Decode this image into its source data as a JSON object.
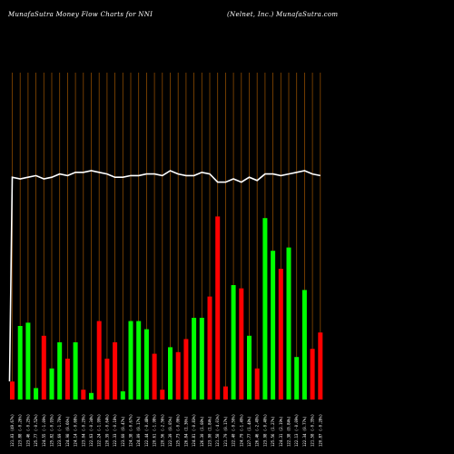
{
  "header": {
    "title_left": "MunafaSutra  Money Flow  Charts for NNI",
    "title_right": "(Nelnet,  Inc.) MunafaSutra.com"
  },
  "colors": {
    "background": "#000000",
    "gridline": "#8B4A00",
    "up": "#00FF00",
    "down": "#FF0000",
    "line": "#FFFFFF"
  },
  "chart_data": {
    "type": "bar",
    "title": "",
    "xlabel": "",
    "ylabel": "",
    "grid": "vertical",
    "legend": "none",
    "ylim": [
      0,
      100
    ],
    "categories": [
      "121.03 (49.67%)",
      "123.88 (-0.26%)",
      "123.46 (-0.25%)",
      "125.77 (-0.52%)",
      "124.55 (-1.09%)",
      "125.82 (-0.93%)",
      "123.69 (-1.70%)",
      "124.98 (0.66%)",
      "124.14 (-0.68%)",
      "123.04 (-0.29%)",
      "122.63 (-0.34%)",
      "122.24 (-1.99%)",
      "120.39 (-0.64%)",
      "122.33 (-0.18%)",
      "123.60 (0.47%)",
      "124.38 (-0.67%)",
      "124.09 (0.17%)",
      "122.44 (-0.48%)",
      "120.61 (-1.98%)",
      "120.56 (-2.56%)",
      "122.39 (0.05%)",
      "125.73 (-0.06%)",
      "126.84 (1.36%)",
      "124.81 (-0.83%)",
      "126.30 (1.08%)",
      "123.90 (1.84%)",
      "121.58 (-4.01%)",
      "121.79 (0.17%)",
      "122.40 (-0.50%)",
      "124.79 (-1.49%)",
      "127.77 (1.48%)",
      "126.46 (-2.49%)",
      "123.98 (-0.40%)",
      "125.56 (1.27%)",
      "124.31 (2.19%)",
      "122.38 (0.84%)",
      "122.13 (-0.09%)",
      "122.34 (0.77%)",
      "121.58 (-0.35%)",
      "120.87 (-0.28%)"
    ],
    "series": [
      {
        "values": [
          5.5,
          22.5,
          23.5,
          3.5,
          19.5,
          9.5,
          17.5,
          12.5,
          17.5,
          3.0,
          2.0,
          24.0,
          12.5,
          17.5,
          2.5,
          24.0,
          24.0,
          21.5,
          14.0,
          3.0,
          16.0,
          14.5,
          18.5,
          25.0,
          25.0,
          31.5,
          56.0,
          4.0,
          35.0,
          34.0,
          19.5,
          9.5,
          55.5,
          45.5,
          40.0,
          46.5,
          13.0,
          33.5,
          15.5,
          20.5
        ],
        "up": [
          false,
          true,
          true,
          true,
          false,
          true,
          true,
          false,
          true,
          false,
          true,
          false,
          false,
          false,
          true,
          true,
          true,
          true,
          false,
          false,
          true,
          false,
          false,
          true,
          true,
          false,
          false,
          false,
          true,
          false,
          true,
          false,
          true,
          true,
          false,
          true,
          true,
          true,
          false,
          false
        ]
      },
      {
        "values": [
          68.0,
          67.5,
          68.0,
          68.5,
          67.5,
          68.0,
          69.0,
          68.5,
          69.5,
          69.5,
          70.0,
          69.5,
          69.0,
          68.0,
          68.0,
          68.5,
          68.5,
          69.0,
          69.0,
          68.5,
          70.0,
          69.0,
          68.5,
          68.5,
          69.5,
          69.0,
          66.5,
          66.5,
          67.5,
          66.5,
          68.0,
          67.0,
          69.0,
          69.0,
          68.5,
          69.0,
          69.5,
          70.0,
          69.0,
          68.5
        ]
      }
    ]
  }
}
